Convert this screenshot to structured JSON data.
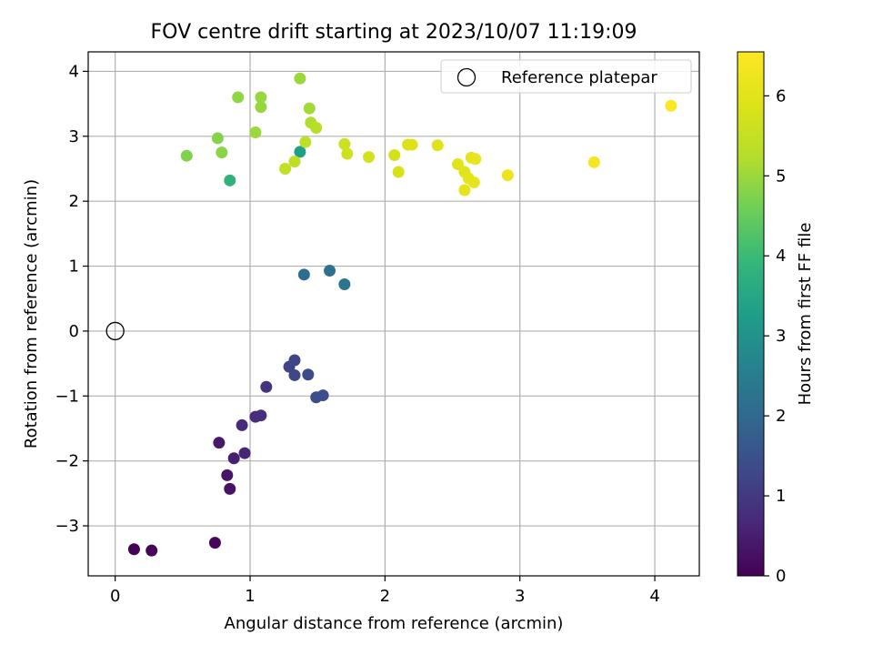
{
  "chart_data": {
    "type": "scatter",
    "title": "FOV centre drift starting at 2023/10/07 11:19:09",
    "xlabel": "Angular distance from reference (arcmin)",
    "ylabel": "Rotation from reference (arcmin)",
    "xlim": [
      -0.2,
      4.33
    ],
    "ylim": [
      -3.77,
      4.3
    ],
    "x_ticks": [
      0,
      1,
      2,
      3,
      4
    ],
    "y_ticks": [
      -3,
      -2,
      -1,
      0,
      1,
      2,
      3,
      4
    ],
    "grid": true,
    "legend": {
      "position": "top-right",
      "entries": [
        "Reference platepar"
      ]
    },
    "reference_point": {
      "x": 0,
      "y": 0,
      "label": "Reference platepar"
    },
    "colorbar": {
      "label": "Hours from first FF file",
      "min": 0,
      "max": 6.55,
      "ticks": [
        0,
        1,
        2,
        3,
        4,
        5,
        6
      ],
      "colormap": "viridis"
    },
    "points": [
      {
        "x": 0.14,
        "y": -3.36,
        "h": 0.03
      },
      {
        "x": 0.27,
        "y": -3.38,
        "h": 0.06
      },
      {
        "x": 0.74,
        "y": -3.26,
        "h": 0.1
      },
      {
        "x": 0.85,
        "y": -2.43,
        "h": 0.3
      },
      {
        "x": 0.83,
        "y": -2.22,
        "h": 0.35
      },
      {
        "x": 0.77,
        "y": -1.72,
        "h": 0.4
      },
      {
        "x": 0.88,
        "y": -1.96,
        "h": 0.5
      },
      {
        "x": 0.96,
        "y": -1.88,
        "h": 0.6
      },
      {
        "x": 0.94,
        "y": -1.45,
        "h": 0.7
      },
      {
        "x": 1.04,
        "y": -1.32,
        "h": 0.75
      },
      {
        "x": 1.08,
        "y": -1.3,
        "h": 0.8
      },
      {
        "x": 1.12,
        "y": -0.86,
        "h": 0.9
      },
      {
        "x": 1.29,
        "y": -0.55,
        "h": 1.2
      },
      {
        "x": 1.33,
        "y": -0.45,
        "h": 1.25
      },
      {
        "x": 1.33,
        "y": -0.68,
        "h": 1.3
      },
      {
        "x": 1.43,
        "y": -0.67,
        "h": 1.35
      },
      {
        "x": 1.49,
        "y": -1.02,
        "h": 1.4
      },
      {
        "x": 1.54,
        "y": -0.99,
        "h": 1.45
      },
      {
        "x": 1.4,
        "y": 0.87,
        "h": 2.1
      },
      {
        "x": 1.59,
        "y": 0.93,
        "h": 2.2
      },
      {
        "x": 1.7,
        "y": 0.72,
        "h": 2.3
      },
      {
        "x": 1.37,
        "y": 2.76,
        "h": 3.3
      },
      {
        "x": 0.85,
        "y": 2.32,
        "h": 3.8
      },
      {
        "x": 0.53,
        "y": 2.7,
        "h": 4.75
      },
      {
        "x": 0.76,
        "y": 2.97,
        "h": 4.8
      },
      {
        "x": 0.79,
        "y": 2.75,
        "h": 4.85
      },
      {
        "x": 0.91,
        "y": 3.6,
        "h": 4.9
      },
      {
        "x": 1.08,
        "y": 3.6,
        "h": 4.95
      },
      {
        "x": 1.08,
        "y": 3.45,
        "h": 4.95
      },
      {
        "x": 1.04,
        "y": 3.06,
        "h": 5.0
      },
      {
        "x": 1.37,
        "y": 3.89,
        "h": 5.0
      },
      {
        "x": 1.44,
        "y": 3.43,
        "h": 5.05
      },
      {
        "x": 1.45,
        "y": 3.21,
        "h": 5.2
      },
      {
        "x": 1.49,
        "y": 3.13,
        "h": 5.3
      },
      {
        "x": 1.41,
        "y": 2.91,
        "h": 5.35
      },
      {
        "x": 1.33,
        "y": 2.61,
        "h": 5.4
      },
      {
        "x": 1.26,
        "y": 2.5,
        "h": 5.45
      },
      {
        "x": 1.7,
        "y": 2.88,
        "h": 5.6
      },
      {
        "x": 1.72,
        "y": 2.73,
        "h": 5.65
      },
      {
        "x": 1.88,
        "y": 2.68,
        "h": 5.7
      },
      {
        "x": 2.07,
        "y": 2.71,
        "h": 5.75
      },
      {
        "x": 2.1,
        "y": 2.45,
        "h": 5.8
      },
      {
        "x": 2.17,
        "y": 2.87,
        "h": 5.85
      },
      {
        "x": 2.2,
        "y": 2.87,
        "h": 5.9
      },
      {
        "x": 2.39,
        "y": 2.86,
        "h": 5.95
      },
      {
        "x": 2.54,
        "y": 2.57,
        "h": 6.0
      },
      {
        "x": 2.59,
        "y": 2.45,
        "h": 6.0
      },
      {
        "x": 2.59,
        "y": 2.17,
        "h": 6.05
      },
      {
        "x": 2.62,
        "y": 2.35,
        "h": 6.05
      },
      {
        "x": 2.64,
        "y": 2.67,
        "h": 6.1
      },
      {
        "x": 2.66,
        "y": 2.29,
        "h": 6.1
      },
      {
        "x": 2.67,
        "y": 2.65,
        "h": 6.15
      },
      {
        "x": 2.91,
        "y": 2.4,
        "h": 6.2
      },
      {
        "x": 3.55,
        "y": 2.6,
        "h": 6.4
      },
      {
        "x": 4.12,
        "y": 3.47,
        "h": 6.55
      }
    ]
  }
}
